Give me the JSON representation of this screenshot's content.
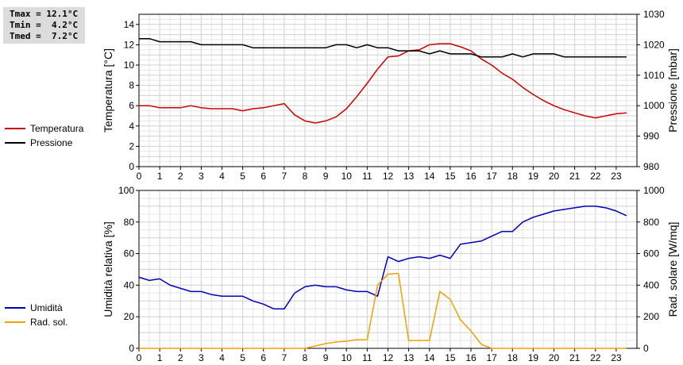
{
  "stats": {
    "tmax": "Tmax = 12.1°C",
    "tmin": "Tmin =  4.2°C",
    "tmed": "Tmed =  7.2°C"
  },
  "legend_top": [
    {
      "label": "Temperatura",
      "color": "#cc0000"
    },
    {
      "label": "Pressione",
      "color": "#000000"
    }
  ],
  "legend_bottom": [
    {
      "label": "Umidità",
      "color": "#0000bb"
    },
    {
      "label": "Rad. sol.",
      "color": "#f0a000"
    }
  ],
  "chart_data": [
    {
      "type": "line",
      "ylabel": "Temperatura [°C]",
      "y2label": "Pressione [mbar]",
      "xlim": [
        0,
        24
      ],
      "ylim": [
        0,
        15
      ],
      "y2lim": [
        980,
        1030
      ],
      "xticks": [
        "0",
        "1",
        "2",
        "3",
        "4",
        "5",
        "6",
        "7",
        "8",
        "9",
        "10",
        "11",
        "12",
        "13",
        "14",
        "15",
        "16",
        "17",
        "18",
        "19",
        "20",
        "21",
        "22",
        "23"
      ],
      "yticks": [
        "0",
        "2",
        "4",
        "6",
        "8",
        "10",
        "12",
        "14"
      ],
      "y2ticks": [
        "980",
        "990",
        "1000",
        "1010",
        "1020",
        "1030"
      ],
      "grid": true,
      "series": [
        {
          "name": "Temperatura",
          "axis": "left",
          "color": "#cc0000",
          "x": [
            0,
            0.5,
            1,
            1.5,
            2,
            2.5,
            3,
            3.5,
            4,
            4.5,
            5,
            5.5,
            6,
            6.5,
            7,
            7.5,
            8,
            8.5,
            9,
            9.5,
            10,
            10.5,
            11,
            11.5,
            12,
            12.5,
            13,
            13.5,
            14,
            14.5,
            15,
            15.5,
            16,
            16.5,
            17,
            17.5,
            18,
            18.5,
            19,
            19.5,
            20,
            20.5,
            21,
            21.5,
            22,
            22.5,
            23,
            23.5
          ],
          "y": [
            6.0,
            6.0,
            5.8,
            5.8,
            5.8,
            6.0,
            5.8,
            5.7,
            5.7,
            5.7,
            5.5,
            5.7,
            5.8,
            6.0,
            6.2,
            5.1,
            4.5,
            4.3,
            4.5,
            4.9,
            5.7,
            6.9,
            8.2,
            9.6,
            10.8,
            10.9,
            11.4,
            11.5,
            12.0,
            12.1,
            12.1,
            11.8,
            11.4,
            10.6,
            10.0,
            9.2,
            8.6,
            7.8,
            7.1,
            6.5,
            6.0,
            5.6,
            5.3,
            5.0,
            4.8,
            5.0,
            5.2,
            5.3
          ]
        },
        {
          "name": "Pressione",
          "axis": "right",
          "color": "#000000",
          "x": [
            0,
            0.5,
            1,
            1.5,
            2,
            2.5,
            3,
            3.5,
            4,
            4.5,
            5,
            5.5,
            6,
            6.5,
            7,
            7.5,
            8,
            8.5,
            9,
            9.5,
            10,
            10.5,
            11,
            11.5,
            12,
            12.5,
            13,
            13.5,
            14,
            14.5,
            15,
            15.5,
            16,
            16.5,
            17,
            17.5,
            18,
            18.5,
            19,
            19.5,
            20,
            20.5,
            21,
            21.5,
            22,
            22.5,
            23,
            23.5
          ],
          "y": [
            1022,
            1022,
            1021,
            1021,
            1021,
            1021,
            1020,
            1020,
            1020,
            1020,
            1020,
            1019,
            1019,
            1019,
            1019,
            1019,
            1019,
            1019,
            1019,
            1020,
            1020,
            1019,
            1020,
            1019,
            1019,
            1018,
            1018,
            1018,
            1017,
            1018,
            1017,
            1017,
            1017,
            1016,
            1016,
            1016,
            1017,
            1016,
            1017,
            1017,
            1017,
            1016,
            1016,
            1016,
            1016,
            1016,
            1016,
            1016
          ]
        }
      ]
    },
    {
      "type": "line",
      "ylabel": "Umidità relativa [%]",
      "y2label": "Rad. solare [W/mq]",
      "xlim": [
        0,
        24
      ],
      "ylim": [
        0,
        100
      ],
      "y2lim": [
        0,
        1000
      ],
      "xticks": [
        "0",
        "1",
        "2",
        "3",
        "4",
        "5",
        "6",
        "7",
        "8",
        "9",
        "10",
        "11",
        "12",
        "13",
        "14",
        "15",
        "16",
        "17",
        "18",
        "19",
        "20",
        "21",
        "22",
        "23"
      ],
      "yticks": [
        "0",
        "20",
        "40",
        "60",
        "80",
        "100"
      ],
      "y2ticks": [
        "0",
        "200",
        "400",
        "600",
        "800",
        "1000"
      ],
      "grid": true,
      "series": [
        {
          "name": "Umidità",
          "axis": "left",
          "color": "#0000bb",
          "x": [
            0,
            0.5,
            1,
            1.5,
            2,
            2.5,
            3,
            3.5,
            4,
            4.5,
            5,
            5.5,
            6,
            6.5,
            7,
            7.5,
            8,
            8.5,
            9,
            9.5,
            10,
            10.5,
            11,
            11.5,
            12,
            12.5,
            13,
            13.5,
            14,
            14.5,
            15,
            15.5,
            16,
            16.5,
            17,
            17.5,
            18,
            18.5,
            19,
            19.5,
            20,
            20.5,
            21,
            21.5,
            22,
            22.5,
            23,
            23.5
          ],
          "y": [
            45,
            43,
            44,
            40,
            38,
            36,
            36,
            34,
            33,
            33,
            33,
            30,
            28,
            25,
            25,
            35,
            39,
            40,
            39,
            39,
            37,
            36,
            36,
            33,
            58,
            55,
            57,
            58,
            57,
            59,
            57,
            66,
            67,
            68,
            71,
            74,
            74,
            80,
            83,
            85,
            87,
            88,
            89,
            90,
            90,
            89,
            87,
            84
          ]
        },
        {
          "name": "Rad. sol.",
          "axis": "right",
          "color": "#f0a000",
          "x": [
            0,
            0.5,
            1,
            1.5,
            2,
            2.5,
            3,
            3.5,
            4,
            4.5,
            5,
            5.5,
            6,
            6.5,
            7,
            7.5,
            8,
            8.5,
            9,
            9.5,
            10,
            10.5,
            11,
            11.5,
            12,
            12.5,
            13,
            13.5,
            14,
            14.5,
            15,
            15.5,
            16,
            16.5,
            17,
            17.5,
            18,
            18.5,
            19,
            19.5,
            20,
            20.5,
            21,
            21.5,
            22,
            22.5,
            23,
            23.5
          ],
          "y": [
            0,
            0,
            0,
            0,
            0,
            0,
            0,
            0,
            0,
            0,
            0,
            0,
            0,
            0,
            0,
            0,
            0,
            15,
            30,
            40,
            45,
            55,
            55,
            400,
            470,
            475,
            50,
            50,
            50,
            360,
            310,
            180,
            110,
            25,
            0,
            0,
            0,
            0,
            0,
            0,
            0,
            0,
            0,
            0,
            0,
            0,
            0,
            0
          ]
        }
      ]
    }
  ]
}
